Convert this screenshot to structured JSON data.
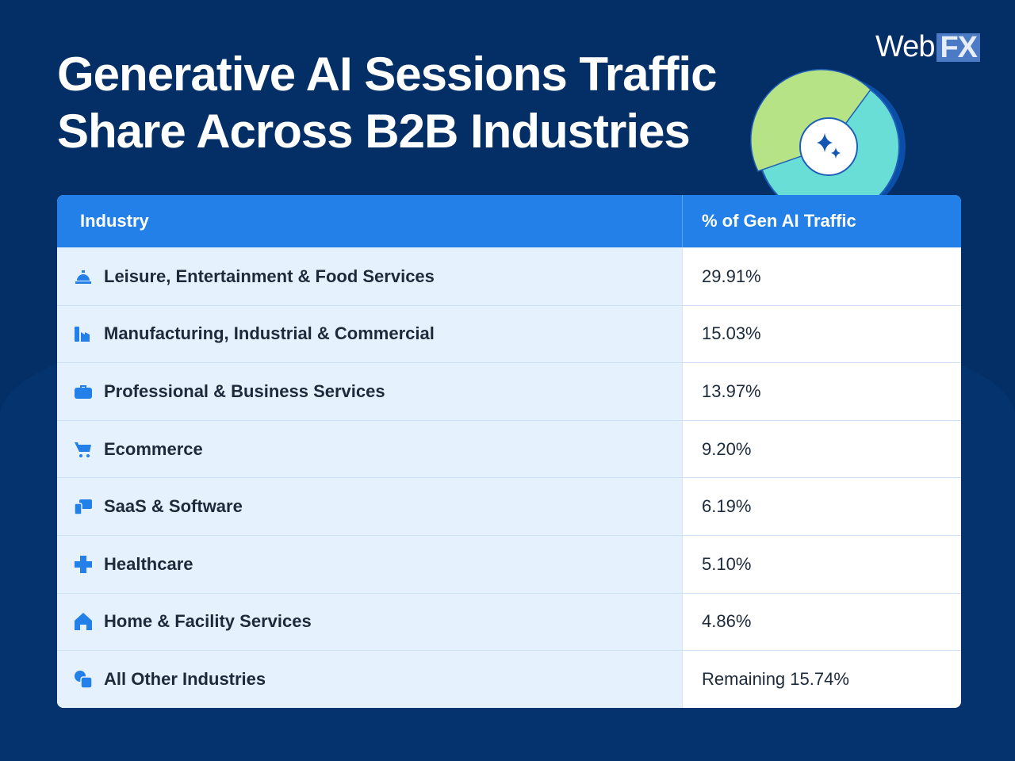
{
  "title": "Generative AI Sessions Traffic Share Across B2B Industries",
  "logo": {
    "text_a": "Web",
    "text_b": "FX"
  },
  "colors": {
    "background": "#032e66",
    "header": "#2380e8",
    "icon": "#2380e8",
    "pie_green": "#b6e385",
    "pie_teal": "#68ded7"
  },
  "chart_data": {
    "type": "table",
    "columns": [
      "Industry",
      "% of Gen AI Traffic"
    ],
    "rows": [
      {
        "industry": "Leisure, Entertainment & Food Services",
        "value": "29.91%",
        "icon": "service-bell-icon"
      },
      {
        "industry": "Manufacturing, Industrial & Commercial",
        "value": "15.03%",
        "icon": "factory-icon"
      },
      {
        "industry": "Professional & Business Services",
        "value": "13.97%",
        "icon": "briefcase-icon"
      },
      {
        "industry": "Ecommerce",
        "value": "9.20%",
        "icon": "shopping-cart-icon"
      },
      {
        "industry": "SaaS & Software",
        "value": "6.19%",
        "icon": "devices-icon"
      },
      {
        "industry": "Healthcare",
        "value": "5.10%",
        "icon": "medical-cross-icon"
      },
      {
        "industry": "Home & Facility Services",
        "value": "4.86%",
        "icon": "house-icon"
      },
      {
        "industry": "All Other Industries",
        "value": "Remaining 15.74%",
        "icon": "shapes-icon"
      }
    ]
  }
}
